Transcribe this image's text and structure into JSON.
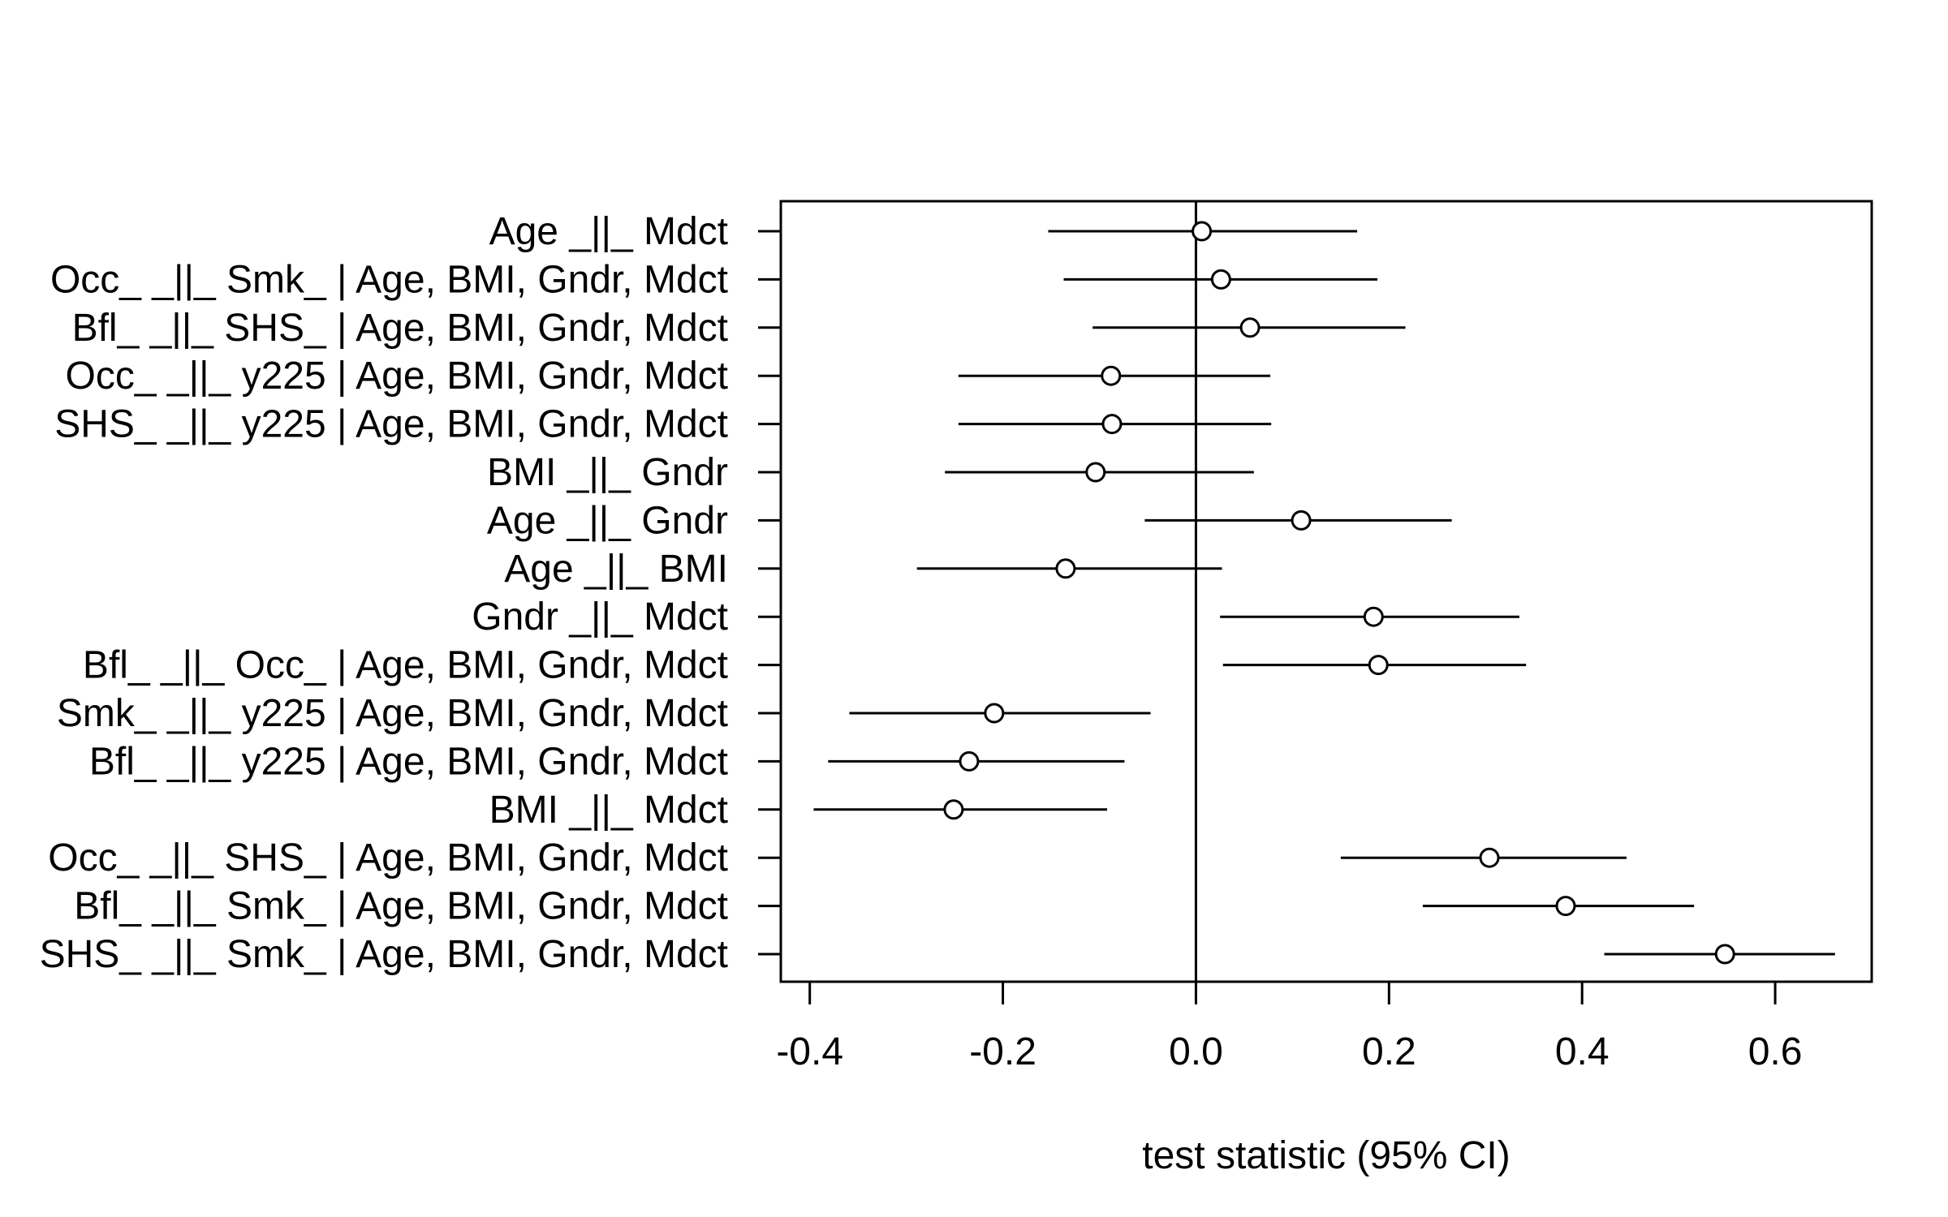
{
  "chart_data": {
    "type": "forest",
    "title": "",
    "xlabel": "test statistic (95% CI)",
    "ylabel": "",
    "xlim": [
      -0.43,
      0.7
    ],
    "xticks": [
      -0.4,
      -0.2,
      0.0,
      0.2,
      0.4,
      0.6
    ],
    "xtick_labels": [
      "-0.4",
      "-0.2",
      "0.0",
      "0.2",
      "0.4",
      "0.6"
    ],
    "reference_line": 0,
    "grid": false,
    "rows": [
      {
        "label": "Age _||_ Mdct",
        "estimate": 0.006,
        "lower": -0.153,
        "upper": 0.167
      },
      {
        "label": "Occ_ _||_ Smk_ | Age, BMI, Gndr, Mdct",
        "estimate": 0.026,
        "lower": -0.137,
        "upper": 0.188
      },
      {
        "label": "Bfl_ _||_ SHS_ | Age, BMI, Gndr, Mdct",
        "estimate": 0.056,
        "lower": -0.107,
        "upper": 0.217
      },
      {
        "label": "Occ_ _||_ y225 | Age, BMI, Gndr, Mdct",
        "estimate": -0.088,
        "lower": -0.246,
        "upper": 0.077
      },
      {
        "label": "SHS_ _||_ y225 | Age, BMI, Gndr, Mdct",
        "estimate": -0.087,
        "lower": -0.246,
        "upper": 0.078
      },
      {
        "label": "BMI _||_ Gndr",
        "estimate": -0.104,
        "lower": -0.26,
        "upper": 0.06
      },
      {
        "label": "Age _||_ Gndr",
        "estimate": 0.109,
        "lower": -0.053,
        "upper": 0.265
      },
      {
        "label": "Age _||_ BMI",
        "estimate": -0.135,
        "lower": -0.289,
        "upper": 0.027
      },
      {
        "label": "Gndr _||_ Mdct",
        "estimate": 0.184,
        "lower": 0.025,
        "upper": 0.335
      },
      {
        "label": "Bfl_ _||_ Occ_ | Age, BMI, Gndr, Mdct",
        "estimate": 0.189,
        "lower": 0.028,
        "upper": 0.342
      },
      {
        "label": "Smk_ _||_ y225 | Age, BMI, Gndr, Mdct",
        "estimate": -0.209,
        "lower": -0.359,
        "upper": -0.047
      },
      {
        "label": "Bfl_ _||_ y225 | Age, BMI, Gndr, Mdct",
        "estimate": -0.235,
        "lower": -0.381,
        "upper": -0.074
      },
      {
        "label": "BMI _||_ Mdct",
        "estimate": -0.251,
        "lower": -0.396,
        "upper": -0.092
      },
      {
        "label": "Occ_ _||_ SHS_ | Age, BMI, Gndr, Mdct",
        "estimate": 0.304,
        "lower": 0.15,
        "upper": 0.446
      },
      {
        "label": "Bfl_ _||_ Smk_ | Age, BMI, Gndr, Mdct",
        "estimate": 0.383,
        "lower": 0.235,
        "upper": 0.516
      },
      {
        "label": "SHS_ _||_ Smk_ | Age, BMI, Gndr, Mdct",
        "estimate": 0.548,
        "lower": 0.423,
        "upper": 0.662
      }
    ]
  }
}
